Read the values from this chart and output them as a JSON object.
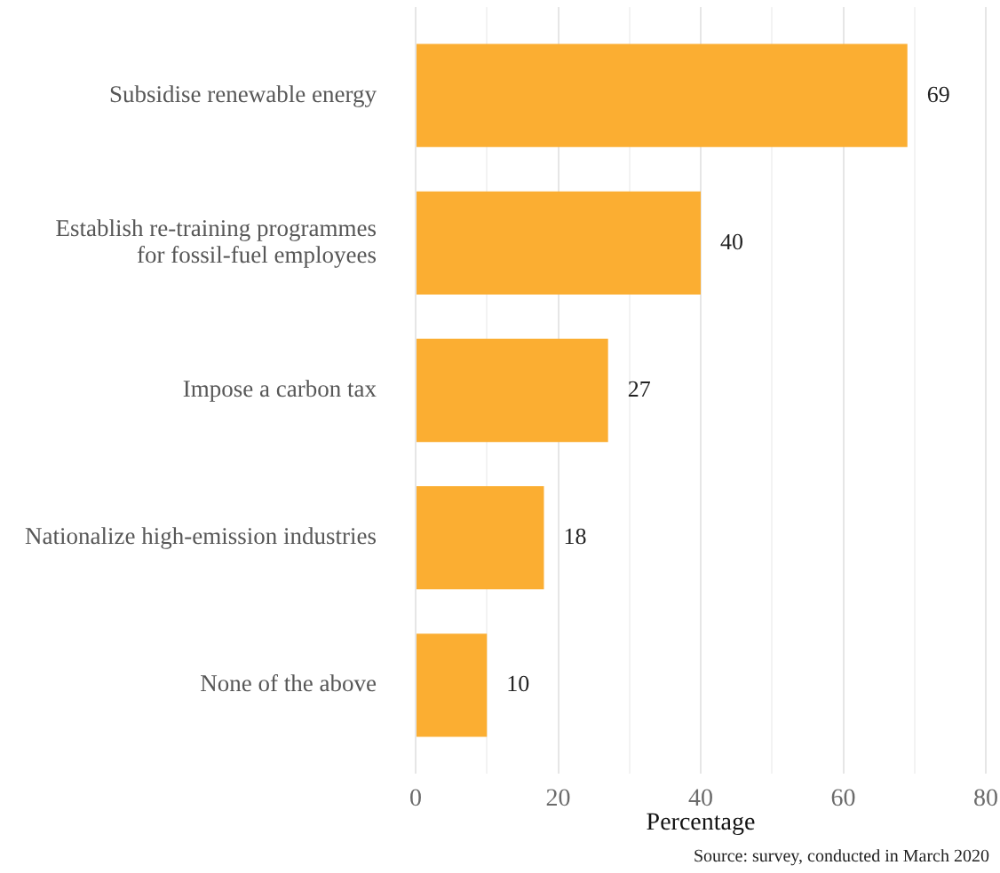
{
  "chart_data": {
    "type": "bar",
    "orientation": "horizontal",
    "categories": [
      "Subsidise renewable energy",
      "Establish re-training programmes for fossil-fuel employees",
      "Impose a carbon tax",
      "Nationalize high-emission industries",
      "None of the above"
    ],
    "values": [
      69,
      40,
      27,
      18,
      10
    ],
    "color": "#fbae32",
    "xlabel": "Percentage",
    "xlim": [
      0,
      80
    ],
    "xticks": [
      0,
      {
        "value": 10,
        "label": null
      },
      20,
      {
        "value": 30,
        "label": null
      },
      40,
      {
        "value": 50,
        "label": null
      },
      60,
      {
        "value": 70,
        "label": null
      },
      80
    ],
    "grid": "x",
    "data_labels": true,
    "annotations": [
      "Source: survey, conducted in March 2020"
    ]
  }
}
